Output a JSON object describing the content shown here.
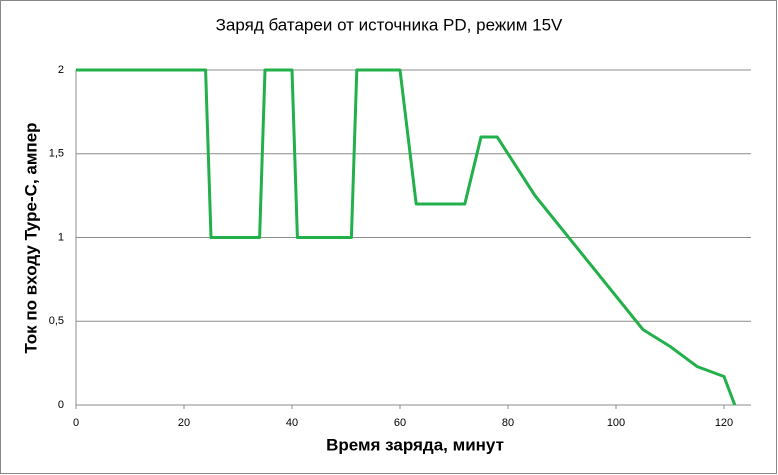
{
  "chart_data": {
    "type": "line",
    "title": "Заряд батареи от источника PD, режим 15V",
    "x_label": "Время заряда, минут",
    "y_label": "Ток по входу Type-C, ампер",
    "x": [
      0,
      24,
      25,
      34,
      35,
      40,
      41,
      51,
      52,
      60,
      63,
      72,
      75,
      78,
      85,
      105,
      110,
      115,
      120,
      122
    ],
    "values": [
      2,
      2,
      1,
      1,
      2,
      2,
      1,
      1,
      2,
      2,
      1.2,
      1.2,
      1.6,
      1.6,
      1.25,
      0.45,
      0.35,
      0.23,
      0.17,
      0
    ],
    "color": "#22b04a",
    "xlim": [
      0,
      125
    ],
    "xticks": [
      0,
      20,
      40,
      60,
      80,
      100,
      120
    ],
    "ylim": [
      0,
      2
    ],
    "yticks": [
      0,
      {
        "value": 0.5,
        "label": "0,5"
      },
      1,
      {
        "value": 1.5,
        "label": "1,5"
      },
      2
    ],
    "grid": true
  }
}
